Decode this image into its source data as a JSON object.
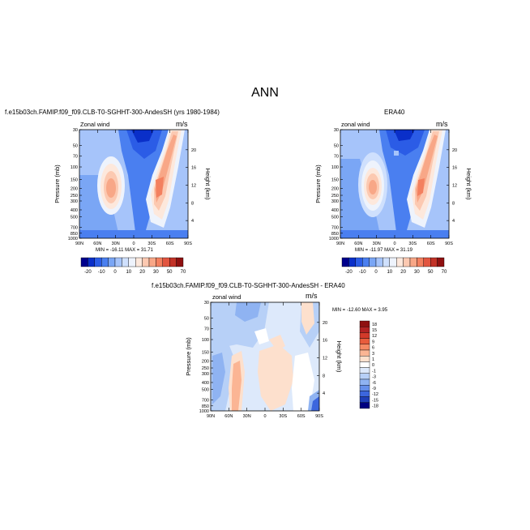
{
  "main_title": "ANN",
  "chart_data": [
    {
      "type": "heatmap",
      "title": "f.e15b03ch.FAMIP.f09_f09.CLB-T0-SGHHT-300-AndesSH (yrs 1980-1984)",
      "left_label": "Zonal wind",
      "right_label": "m/s",
      "xlabel": "",
      "ylabel": "Pressure (mb)",
      "ylabel_right": "Height (km)",
      "x_ticks": [
        "90N",
        "60N",
        "30N",
        "0",
        "30S",
        "60S",
        "90S"
      ],
      "y_ticks": [
        "30",
        "50",
        "70",
        "100",
        "150",
        "200",
        "250",
        "300",
        "400",
        "500",
        "700",
        "850",
        "1000"
      ],
      "y_ticks_right": [
        "20",
        "16",
        "12",
        "8",
        "4"
      ],
      "min_max": "MIN = -16.11   MAX = 31.71",
      "colorbar_labels": [
        "-20",
        "-10",
        "0",
        "10",
        "20",
        "30",
        "50",
        "70"
      ],
      "min": -16.11,
      "max": 31.71
    },
    {
      "type": "heatmap",
      "title": "ERA40",
      "left_label": "zonal wind",
      "right_label": "m/s",
      "xlabel": "",
      "ylabel": "Pressure (mb)",
      "ylabel_right": "Height (km)",
      "x_ticks": [
        "90N",
        "60N",
        "30N",
        "0",
        "30S",
        "60S",
        "90S"
      ],
      "y_ticks": [
        "30",
        "50",
        "70",
        "100",
        "150",
        "200",
        "250",
        "300",
        "400",
        "500",
        "700",
        "850",
        "1000"
      ],
      "y_ticks_right": [
        "20",
        "16",
        "12",
        "8",
        "4"
      ],
      "min_max": "MIN = -11.97   MAX = 31.19",
      "colorbar_labels": [
        "-20",
        "-10",
        "0",
        "10",
        "20",
        "30",
        "50",
        "70"
      ],
      "min": -11.97,
      "max": 31.19
    },
    {
      "type": "heatmap",
      "title": "f.e15b03ch.FAMIP.f09_f09.CLB-T0-SGHHT-300-AndesSH - ERA40",
      "left_label": "zonal wind",
      "right_label": "m/s",
      "xlabel": "",
      "ylabel": "Pressure (mb)",
      "ylabel_right": "Height (km)",
      "x_ticks": [
        "90N",
        "60N",
        "30N",
        "0",
        "30S",
        "60S",
        "90S"
      ],
      "y_ticks": [
        "30",
        "50",
        "70",
        "100",
        "150",
        "200",
        "250",
        "300",
        "400",
        "500",
        "700",
        "850",
        "1000"
      ],
      "y_ticks_right": [
        "20",
        "16",
        "12",
        "8",
        "4"
      ],
      "min_max": "MIN = -12.60   MAX =   3.95",
      "colorbar_labels": [
        "18",
        "15",
        "12",
        "9",
        "6",
        "3",
        "1",
        "0",
        "-1",
        "-3",
        "-6",
        "-9",
        "-12",
        "-15",
        "-18"
      ],
      "min": -12.6,
      "max": 3.95
    }
  ],
  "colors": {
    "abs_scale": [
      "#00008c",
      "#0a2fc9",
      "#2b5ce6",
      "#4a7ff0",
      "#7aa6f5",
      "#a6c4fa",
      "#cfe0fd",
      "#eef3fc",
      "#fde8dc",
      "#fcc9b1",
      "#f8a787",
      "#f3805f",
      "#e25540",
      "#c23227",
      "#8f1010"
    ],
    "diff_scale": [
      "#8f1010",
      "#b22222",
      "#d33a2a",
      "#e85c3c",
      "#f58a64",
      "#fbb594",
      "#fde0cd",
      "#ffffff",
      "#dde9fb",
      "#b7d0f7",
      "#8fb3f2",
      "#658fea",
      "#3c66dd",
      "#1f3fb8",
      "#000080"
    ]
  }
}
